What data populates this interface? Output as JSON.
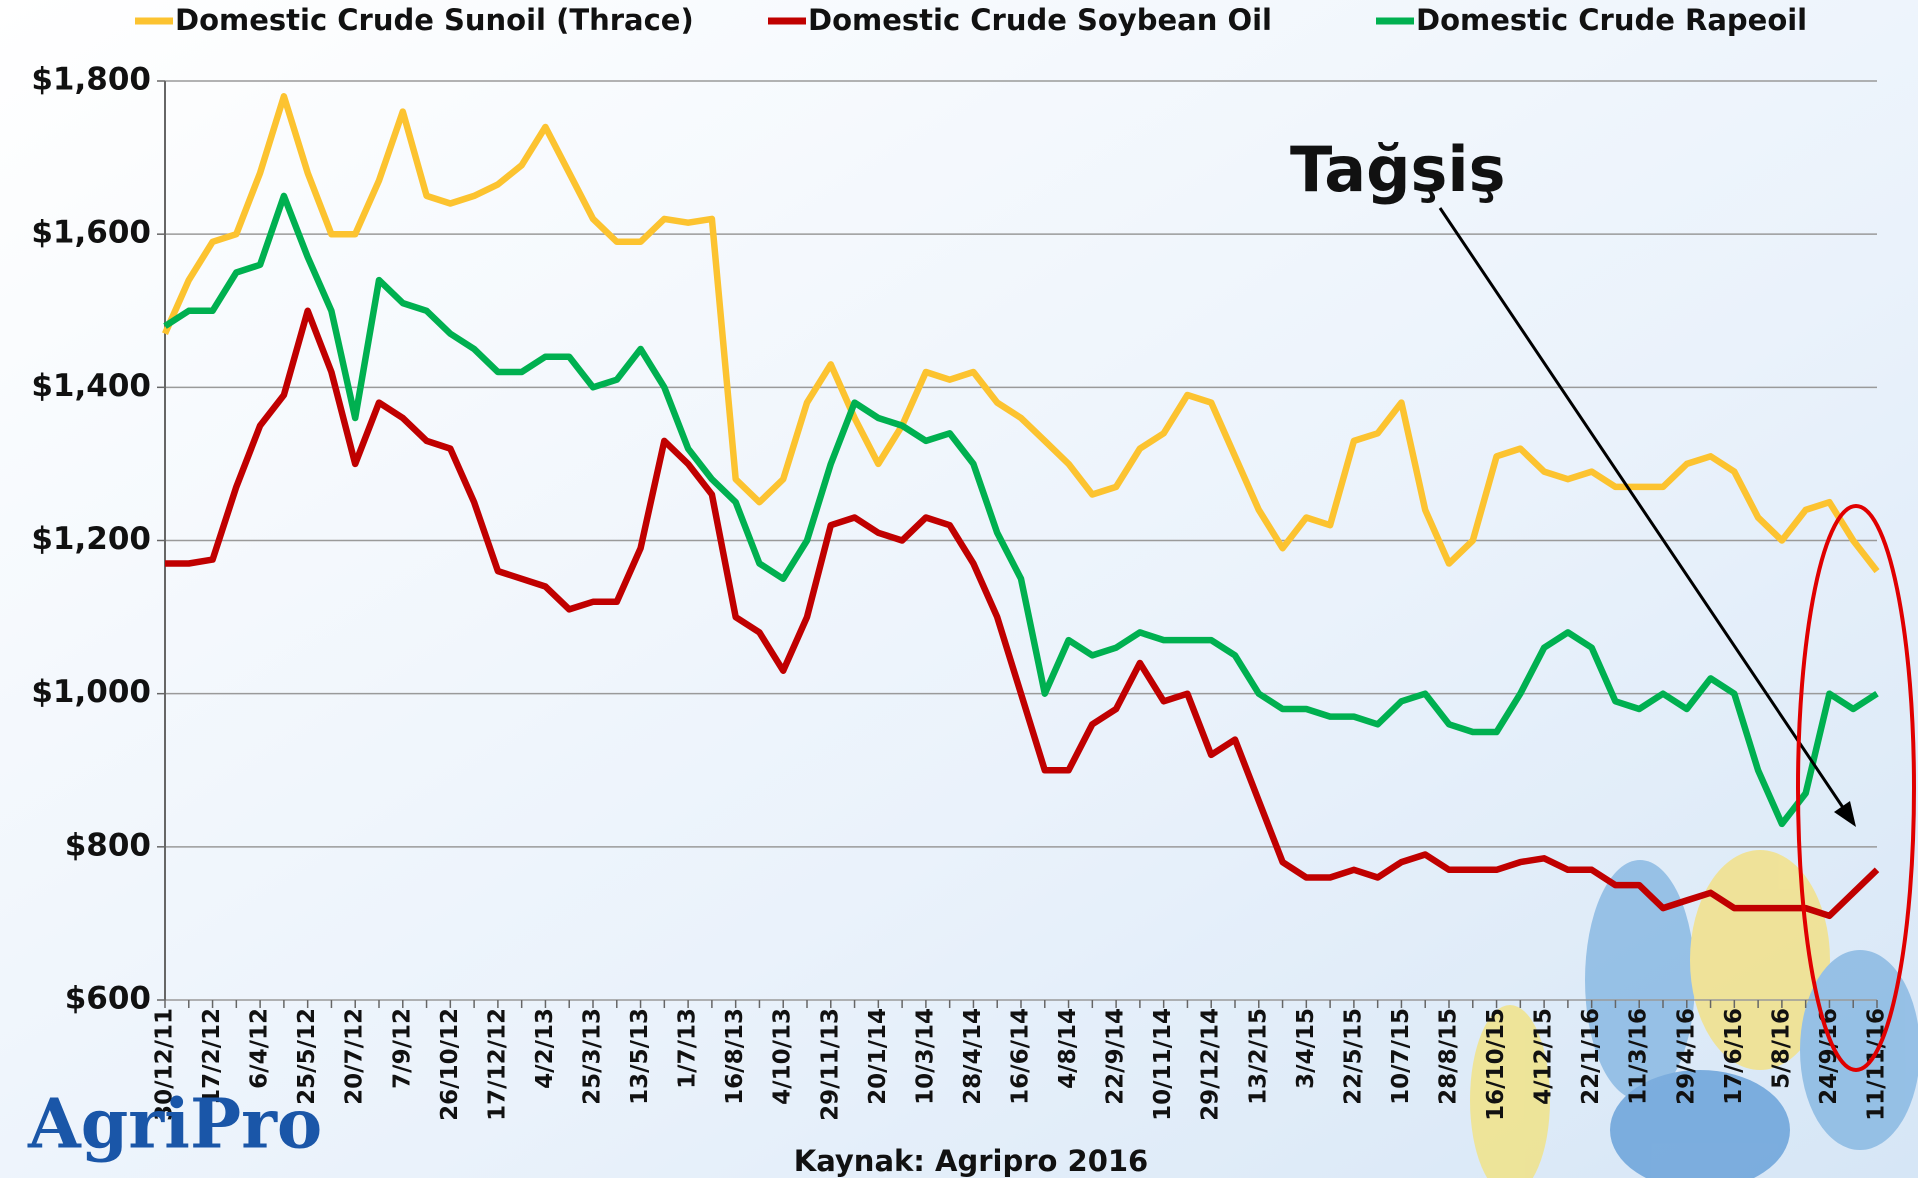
{
  "chart_data": {
    "type": "line",
    "categories": [
      "30/12/11",
      null,
      "17/2/12",
      null,
      "6/4/12",
      null,
      "25/5/12",
      null,
      "20/7/12",
      null,
      "7/9/12",
      null,
      "26/10/12",
      null,
      "17/12/12",
      null,
      "4/2/13",
      null,
      "25/3/13",
      null,
      "13/5/13",
      null,
      "1/7/13",
      null,
      "16/8/13",
      null,
      "4/10/13",
      null,
      "29/11/13",
      null,
      "20/1/14",
      null,
      "10/3/14",
      null,
      "28/4/14",
      null,
      "16/6/14",
      null,
      "4/8/14",
      null,
      "22/9/14",
      null,
      "10/11/14",
      null,
      "29/12/14",
      null,
      "13/2/15",
      null,
      "3/4/15",
      null,
      "22/5/15",
      null,
      "10/7/15",
      null,
      "28/8/15",
      null,
      "16/10/15",
      null,
      "4/12/15",
      null,
      "22/1/16",
      null,
      "11/3/16",
      null,
      "29/4/16",
      null,
      "17/6/16",
      null,
      "5/8/16",
      null,
      "24/9/16",
      null,
      "11/11/16"
    ],
    "series": [
      {
        "name": "Domestic Crude Sunoil (Thrace)",
        "color": "#fcc330",
        "values": [
          1470,
          1540,
          1590,
          1600,
          1680,
          1780,
          1680,
          1600,
          1600,
          1670,
          1760,
          1650,
          1640,
          1650,
          1665,
          1690,
          1740,
          1680,
          1620,
          1590,
          1590,
          1620,
          1615,
          1620,
          1280,
          1250,
          1280,
          1380,
          1430,
          1360,
          1300,
          1350,
          1420,
          1410,
          1420,
          1380,
          1360,
          1330,
          1300,
          1260,
          1270,
          1320,
          1340,
          1390,
          1380,
          1310,
          1240,
          1190,
          1230,
          1220,
          1330,
          1340,
          1380,
          1240,
          1170,
          1200,
          1310,
          1320,
          1290,
          1280,
          1290,
          1270,
          1270,
          1270,
          1300,
          1310,
          1290,
          1230,
          1200,
          1240,
          1250,
          1200,
          1160
        ]
      },
      {
        "name": "Domestic Crude Soybean Oil",
        "color": "#c00000",
        "values": [
          1170,
          1170,
          1175,
          1270,
          1350,
          1390,
          1500,
          1420,
          1300,
          1380,
          1360,
          1330,
          1320,
          1250,
          1160,
          1150,
          1140,
          1110,
          1120,
          1120,
          1190,
          1330,
          1300,
          1260,
          1100,
          1080,
          1030,
          1100,
          1220,
          1230,
          1210,
          1200,
          1230,
          1220,
          1170,
          1100,
          1000,
          900,
          900,
          960,
          980,
          1040,
          990,
          1000,
          920,
          940,
          860,
          780,
          760,
          760,
          770,
          760,
          780,
          790,
          770,
          770,
          770,
          780,
          785,
          770,
          770,
          750,
          750,
          720,
          730,
          740,
          720,
          720,
          720,
          720,
          710,
          740,
          770
        ]
      },
      {
        "name": "Domestic Crude Rapeoil",
        "color": "#00b050",
        "values": [
          1480,
          1500,
          1500,
          1550,
          1560,
          1650,
          1570,
          1500,
          1360,
          1540,
          1510,
          1500,
          1470,
          1450,
          1420,
          1420,
          1440,
          1440,
          1400,
          1410,
          1450,
          1400,
          1320,
          1280,
          1250,
          1170,
          1150,
          1200,
          1300,
          1380,
          1360,
          1350,
          1330,
          1340,
          1300,
          1210,
          1150,
          1000,
          1070,
          1050,
          1060,
          1080,
          1070,
          1070,
          1070,
          1050,
          1000,
          980,
          980,
          970,
          970,
          960,
          990,
          1000,
          960,
          950,
          950,
          1000,
          1060,
          1080,
          1060,
          990,
          980,
          1000,
          980,
          1020,
          1000,
          900,
          830,
          870,
          1000,
          980,
          1000
        ]
      }
    ],
    "ylim": [
      600,
      1800
    ],
    "yticks": [
      {
        "value": 600,
        "label": "$600"
      },
      {
        "value": 800,
        "label": "$800"
      },
      {
        "value": 1000,
        "label": "$1,000"
      },
      {
        "value": 1200,
        "label": "$1,200"
      },
      {
        "value": 1400,
        "label": "$1,400"
      },
      {
        "value": 1600,
        "label": "$1,600"
      },
      {
        "value": 1800,
        "label": "$1,800"
      }
    ],
    "grid": true,
    "legend": "top",
    "annotation": "Tağşiş",
    "source": "Kaynak: Agripro 2016",
    "logo": "AgriPro"
  }
}
